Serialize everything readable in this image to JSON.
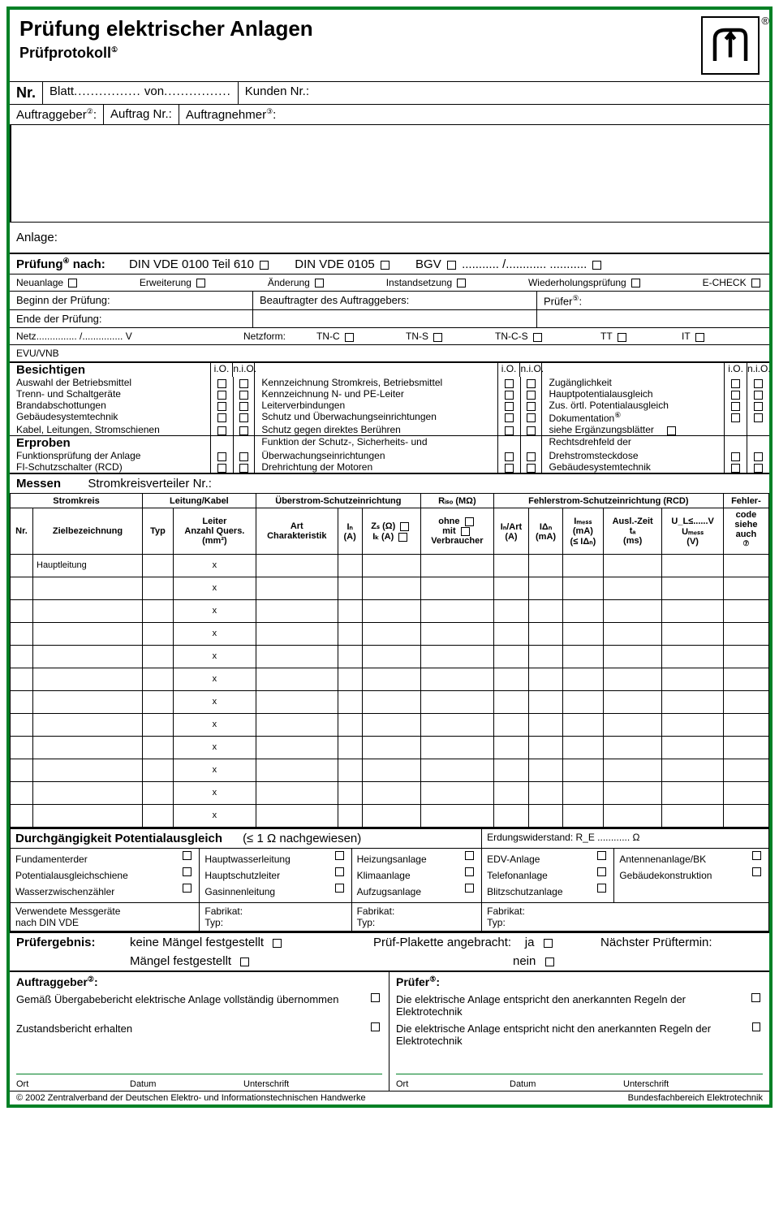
{
  "colors": {
    "border": "#008025",
    "text": "#000000",
    "bg": "#ffffff"
  },
  "header": {
    "title": "Prüfung elektrischer Anlagen",
    "subtitle": "Prüfprotokoll",
    "sup1": "①",
    "reg": "®"
  },
  "nr": {
    "label": "Nr.",
    "blatt": "Blatt",
    "dots": "................",
    "von": "von",
    "kunden": "Kunden Nr.:",
    "auftraggeber": "Auftraggeber",
    "sup2": "②",
    "auftragnr": "Auftrag Nr.:",
    "auftragnehmer": "Auftragnehmer",
    "sup3": "③",
    "anlage": "Anlage:"
  },
  "pruefung": {
    "label": "Prüfung",
    "sup4": "④",
    "nach": "nach:",
    "din610": "DIN VDE 0100 Teil 610",
    "din0105": "DIN VDE 0105",
    "bgv": "BGV",
    "slashdots": "........... /............  ...........",
    "neuanlage": "Neuanlage",
    "erweiterung": "Erweiterung",
    "aenderung": "Änderung",
    "instandsetzung": "Instandsetzung",
    "wiederholung": "Wiederholungsprüfung",
    "echeck": "E-CHECK",
    "beginn": "Beginn der Prüfung:",
    "beauftragter": "Beauftragter des Auftraggebers:",
    "pruefer": "Prüfer",
    "sup5": "⑤",
    "ende": "Ende der Prüfung:",
    "netz": "Netz",
    "netzdots": "............... /............... V",
    "netzform": "Netzform:",
    "tnc": "TN-C",
    "tns": "TN-S",
    "tncs": "TN-C-S",
    "tt": "TT",
    "it": "IT",
    "evu": "EVU/VNB"
  },
  "besichtigen": {
    "title": "Besichtigen",
    "io": "i.O.",
    "nio": "n.i.O.",
    "col1": [
      "Auswahl der Betriebsmittel",
      "Trenn- und Schaltgeräte",
      "Brandabschottungen",
      "Gebäudesystemtechnik",
      "Kabel, Leitungen, Stromschienen"
    ],
    "col2": [
      "Kennzeichnung Stromkreis, Betriebsmittel",
      "Kennzeichnung N- und PE-Leiter",
      "Leiterverbindungen",
      "Schutz und Überwachungseinrichtungen",
      "Schutz gegen direktes Berühren"
    ],
    "col3": [
      "Zugänglichkeit",
      "Hauptpotentialausgleich",
      "Zus. örtl. Potentialausgleich",
      "Dokumentation",
      "siehe Ergänzungsblätter"
    ],
    "sup6": "⑥"
  },
  "erproben": {
    "title": "Erproben",
    "col1": [
      "Funktionsprüfung der Anlage",
      "FI-Schutzschalter (RCD)"
    ],
    "col2a": "Funktion der Schutz-, Sicherheits- und",
    "col2b": "Überwachungseinrichtungen",
    "col2c": "Drehrichtung der Motoren",
    "col3a": "Rechtsdrehfeld der",
    "col3b": "Drehstromsteckdose",
    "col3c": "Gebäudesystemtechnik"
  },
  "messen": {
    "title": "Messen",
    "verteiler": "Stromkreisverteiler Nr.:",
    "h_stromkreis": "Stromkreis",
    "h_leitung": "Leitung/Kabel",
    "h_ueberstrom": "Überstrom-Schutzeinrichtung",
    "h_riso": "Rᵢₛₒ (MΩ)",
    "h_fehler": "Fehlerstrom-Schutzeinrichtung (RCD)",
    "h_fehlercode": "Fehler-",
    "nr": "Nr.",
    "ziel": "Zielbezeichnung",
    "typ": "Typ",
    "leiter": "Leiter",
    "anzahl": "Anzahl",
    "quers": "Quers.",
    "mm2": "(mm²)",
    "art": "Art",
    "charakteristik": "Charakteristik",
    "in": "Iₙ",
    "ina": "(A)",
    "zs": "Zₛ (Ω)",
    "ik": "Iₖ (A)",
    "ohne": "ohne",
    "mit": "mit",
    "verbraucher": "Verbraucher",
    "inart": "Iₙ/Art",
    "inartA": "(A)",
    "idn": "IΔₙ",
    "idnma": "(mA)",
    "imess": "Iₘₑₛₛ",
    "idn2": "(≤ IΔₙ)",
    "ausl": "Ausl.-Zeit",
    "ta": "tₐ",
    "ms": "(ms)",
    "ul": "U_L≤......V",
    "umess": "Uₘₑₛₛ",
    "volt": "(V)",
    "code": "code",
    "siehe": "siehe",
    "auch": "auch",
    "sup7": "⑦",
    "haupt": "Hauptleitung",
    "x": "x",
    "rows": 12
  },
  "pot": {
    "title": "Durchgängigkeit Potentialausgleich",
    "ohm": "(≤ 1 Ω nachgewiesen)",
    "erdung": "Erdungswiderstand: R_E ............ Ω",
    "c1": [
      "Fundamenterder",
      "Potentialausgleichschiene",
      "Wasserzwischenzähler"
    ],
    "c2": [
      "Hauptwasserleitung",
      "Hauptschutzleiter",
      "Gasinnenleitung"
    ],
    "c3": [
      "Heizungsanlage",
      "Klimaanlage",
      "Aufzugsanlage"
    ],
    "c4": [
      "EDV-Anlage",
      "Telefonanlage",
      "Blitzschutzanlage"
    ],
    "c5": [
      "Antennenanlage/BK",
      "Gebäudekonstruktion"
    ],
    "mess": "Verwendete Messgeräte",
    "dinvde": "nach DIN VDE",
    "fabrikat": "Fabrikat:",
    "typLbl": "Typ:"
  },
  "ergebnis": {
    "title": "Prüfergebnis:",
    "keine": "keine Mängel festgestellt",
    "maengel": "Mängel festgestellt",
    "plakette": "Prüf-Plakette angebracht:",
    "ja": "ja",
    "nein": "nein",
    "naechster": "Nächster Prüftermin:"
  },
  "sign": {
    "auftraggeber": "Auftraggeber",
    "sup2": "②",
    "pruefer": "Prüfer",
    "sup5": "⑤",
    "gemaess": "Gemäß Übergabebericht elektrische Anlage vollständig übernommen",
    "zustand": "Zustandsbericht erhalten",
    "entspricht": "Die elektrische Anlage entspricht den anerkannten Regeln der Elektrotechnik",
    "nichtentspricht": "Die elektrische Anlage entspricht nicht den anerkannten Regeln der Elektrotechnik",
    "ort": "Ort",
    "datum": "Datum",
    "unterschrift": "Unterschrift"
  },
  "footer": {
    "copy": "© 2002 Zentralverband der Deutschen Elektro- und Informationstechnischen Handwerke",
    "bereich": "Bundesfachbereich Elektrotechnik"
  }
}
